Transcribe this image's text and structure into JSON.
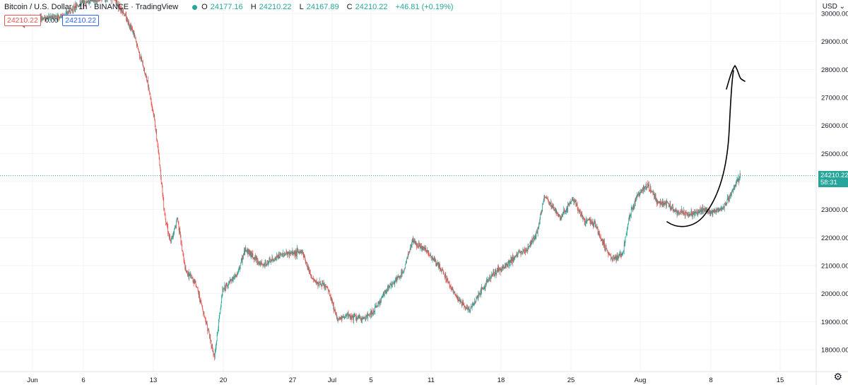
{
  "header": {
    "symbol": "Bitcoin / U.S. Dollar · 1h · BINANCE · TradingView",
    "open_label": "O",
    "open": "24177.16",
    "high_label": "H",
    "high": "24210.22",
    "low_label": "L",
    "low": "24167.89",
    "close_label": "C",
    "close": "24210.22",
    "change": "+46.81 (+0.19%)"
  },
  "trade": {
    "sell": "24210.22",
    "spread": "0.00",
    "buy": "24210.22"
  },
  "price_scale": {
    "currency": "USD"
  },
  "last_price": {
    "value": "24210.22",
    "countdown": "58:31"
  },
  "colors": {
    "up": "#26a69a",
    "down": "#ef5350",
    "grid": "#f0f3fa",
    "text": "#131722",
    "price_line": "#26a69a",
    "drawing": "#000000"
  },
  "icons": {
    "settings": "gear-icon",
    "status": "dot-icon"
  },
  "chart_data": {
    "type": "candlestick",
    "interval": "1h",
    "y_ticks": [
      "18000.00",
      "19000.00",
      "20000.00",
      "21000.00",
      "22000.00",
      "23000.00",
      "24000.00",
      "25000.00",
      "26000.00",
      "27000.00",
      "28000.00",
      "29000.00",
      "30000.00"
    ],
    "ylim": [
      17400,
      30600
    ],
    "x_ticks": [
      "Jun",
      "6",
      "13",
      "20",
      "27",
      "Jul",
      "5",
      "11",
      "18",
      "25",
      "Aug",
      "8",
      "15"
    ],
    "price_path": [
      [
        "Jun",
        "29800"
      ],
      [
        "6",
        "30400"
      ],
      [
        "9",
        "30600"
      ],
      [
        "10",
        "30000"
      ],
      [
        "11",
        "28800"
      ],
      [
        "12",
        "27600"
      ],
      [
        "13",
        "26400"
      ],
      [
        "14",
        "22900"
      ],
      [
        "15",
        "21800"
      ],
      [
        "16",
        "22600"
      ],
      [
        "17",
        "20700"
      ],
      [
        "18",
        "20300"
      ],
      [
        "19",
        "17700"
      ],
      [
        "20",
        "20100"
      ],
      [
        "22",
        "21100"
      ],
      [
        "25",
        "21400"
      ],
      [
        "27",
        "21000"
      ],
      [
        "28",
        "20500"
      ],
      [
        "Jul",
        "19200"
      ],
      [
        "4",
        "19500"
      ],
      [
        "6",
        "20200"
      ],
      [
        "8",
        "21800"
      ],
      [
        "10",
        "21300"
      ],
      [
        "12",
        "19700"
      ],
      [
        "13",
        "19800"
      ],
      [
        "15",
        "20800"
      ],
      [
        "17",
        "21300"
      ],
      [
        "19",
        "22000"
      ],
      [
        "20",
        "23500"
      ],
      [
        "22",
        "22600"
      ],
      [
        "23",
        "22700"
      ],
      [
        "25",
        "22100"
      ],
      [
        "26",
        "21200"
      ],
      [
        "27",
        "22800"
      ],
      [
        "28",
        "23700"
      ],
      [
        "30",
        "23700"
      ],
      [
        "Aug",
        "23400"
      ],
      [
        "2",
        "22900"
      ],
      [
        "4",
        "22800"
      ],
      [
        "6",
        "23000"
      ],
      [
        "8",
        "24210"
      ]
    ],
    "last_value": 24210.22,
    "annotation": "hand-drawn arrow projecting rise from ~23000 to ~28000 after Aug 8"
  }
}
